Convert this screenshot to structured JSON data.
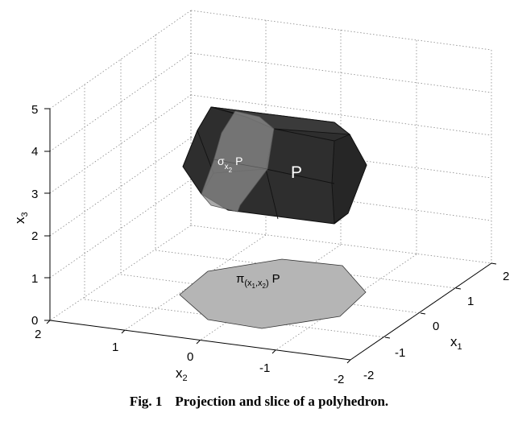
{
  "chart_data": {
    "type": "3d-polyhedron",
    "axes": {
      "x1": {
        "label": "x",
        "sub": "1",
        "range": [
          -2,
          2
        ],
        "ticks": [
          "-2",
          "-1",
          "0",
          "1",
          "2"
        ]
      },
      "x2": {
        "label": "x",
        "sub": "2",
        "range": [
          -2,
          2
        ],
        "ticks": [
          "-2",
          "-1",
          "0",
          "1",
          "2"
        ]
      },
      "x3": {
        "label": "x",
        "sub": "3",
        "range": [
          0,
          5
        ],
        "ticks": [
          "0",
          "1",
          "2",
          "3",
          "4",
          "5"
        ]
      }
    },
    "grid": true,
    "labels": {
      "polyhedron": "P",
      "slice": {
        "sym": "σ",
        "sub": "x",
        "subsub": "2",
        "tail": "P"
      },
      "projection": {
        "sym": "π",
        "sub1": "(x",
        "s1": "1",
        "mid": ",x",
        "s2": "2",
        "close": ")",
        "tail": "P"
      }
    },
    "colors": {
      "polyhedron": "#333333",
      "slice": "#8c8c8c",
      "projection": "#b5b5b5"
    }
  },
  "caption": {
    "fig": "Fig. 1",
    "text": "Projection and slice of a polyhedron."
  }
}
